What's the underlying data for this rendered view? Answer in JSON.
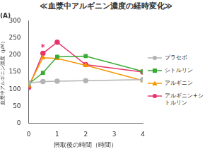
{
  "chart_data": {
    "type": "line",
    "title": "≪血漿中アルギニン濃度の経時変化≫",
    "subtitle": "(A)",
    "x_label": "摂取後の時間（時間）",
    "y_label": "血漿中アルギニン濃度（μM）",
    "x": [
      0,
      0.5,
      1,
      2,
      4
    ],
    "series": [
      {
        "name": "プラセボ",
        "color": "#b3b3b3",
        "marker": "circle",
        "values": [
          118,
          122,
          123,
          125,
          128
        ]
      },
      {
        "name": "シトルリン",
        "color": "#3aaa35",
        "marker": "square",
        "values": [
          115,
          148,
          195,
          197,
          152
        ]
      },
      {
        "name": "アルギニン",
        "color": "#f39800",
        "marker": "triangle",
        "values": [
          110,
          192,
          190,
          170,
          125
        ]
      },
      {
        "name": "アルギニン+シトルリン",
        "color": "#e8336d",
        "marker": "circle",
        "values": [
          105,
          205,
          238,
          172,
          150
        ]
      }
    ],
    "annotations": [
      {
        "text": "*",
        "x": 0.5,
        "y": 222
      }
    ],
    "xlim": [
      0,
      4
    ],
    "xticks": [
      0,
      1,
      2,
      3,
      4
    ],
    "ylim": [
      0,
      300
    ],
    "yticks": [
      0,
      50,
      100,
      150,
      200,
      250,
      300
    ],
    "grid": false,
    "legend": "right"
  }
}
